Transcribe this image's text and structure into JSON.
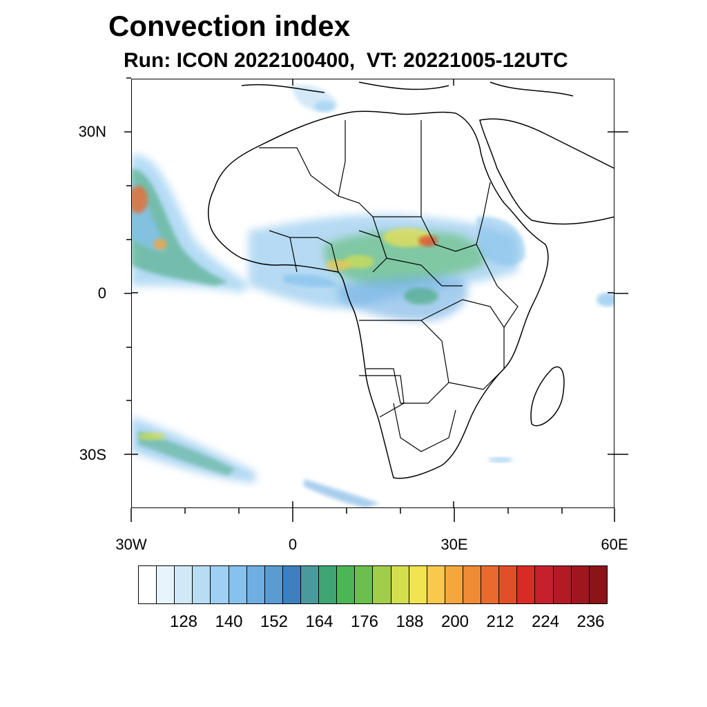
{
  "title": "Convection index",
  "subtitle": "Run: ICON 2022100400,  VT: 20221005-12UTC",
  "map": {
    "lat_labels": [
      "30N",
      "0",
      "30S"
    ],
    "lon_labels": [
      "30W",
      "0",
      "30E",
      "60E"
    ],
    "lon_range": [
      "30W",
      "60E"
    ],
    "lat_range": [
      "40S",
      "40N"
    ]
  },
  "colorbar": {
    "colors": [
      "#ffffff",
      "#e8f4fc",
      "#d0e9f8",
      "#b7dcf4",
      "#9dd0f2",
      "#86c2ec",
      "#6eaee2",
      "#5a9bd4",
      "#3f7fbf",
      "#4a9a9b",
      "#3fa673",
      "#4cb556",
      "#6cbf4c",
      "#a2cd4b",
      "#d4df4e",
      "#f2e350",
      "#f8c94a",
      "#f4a63f",
      "#ef8a36",
      "#ea6a2e",
      "#e24e29",
      "#d92b26",
      "#c6202d",
      "#b21b23",
      "#9e171e",
      "#8a1417"
    ],
    "tick_labels": [
      "128",
      "140",
      "152",
      "164",
      "176",
      "188",
      "200",
      "212",
      "224",
      "236"
    ]
  }
}
